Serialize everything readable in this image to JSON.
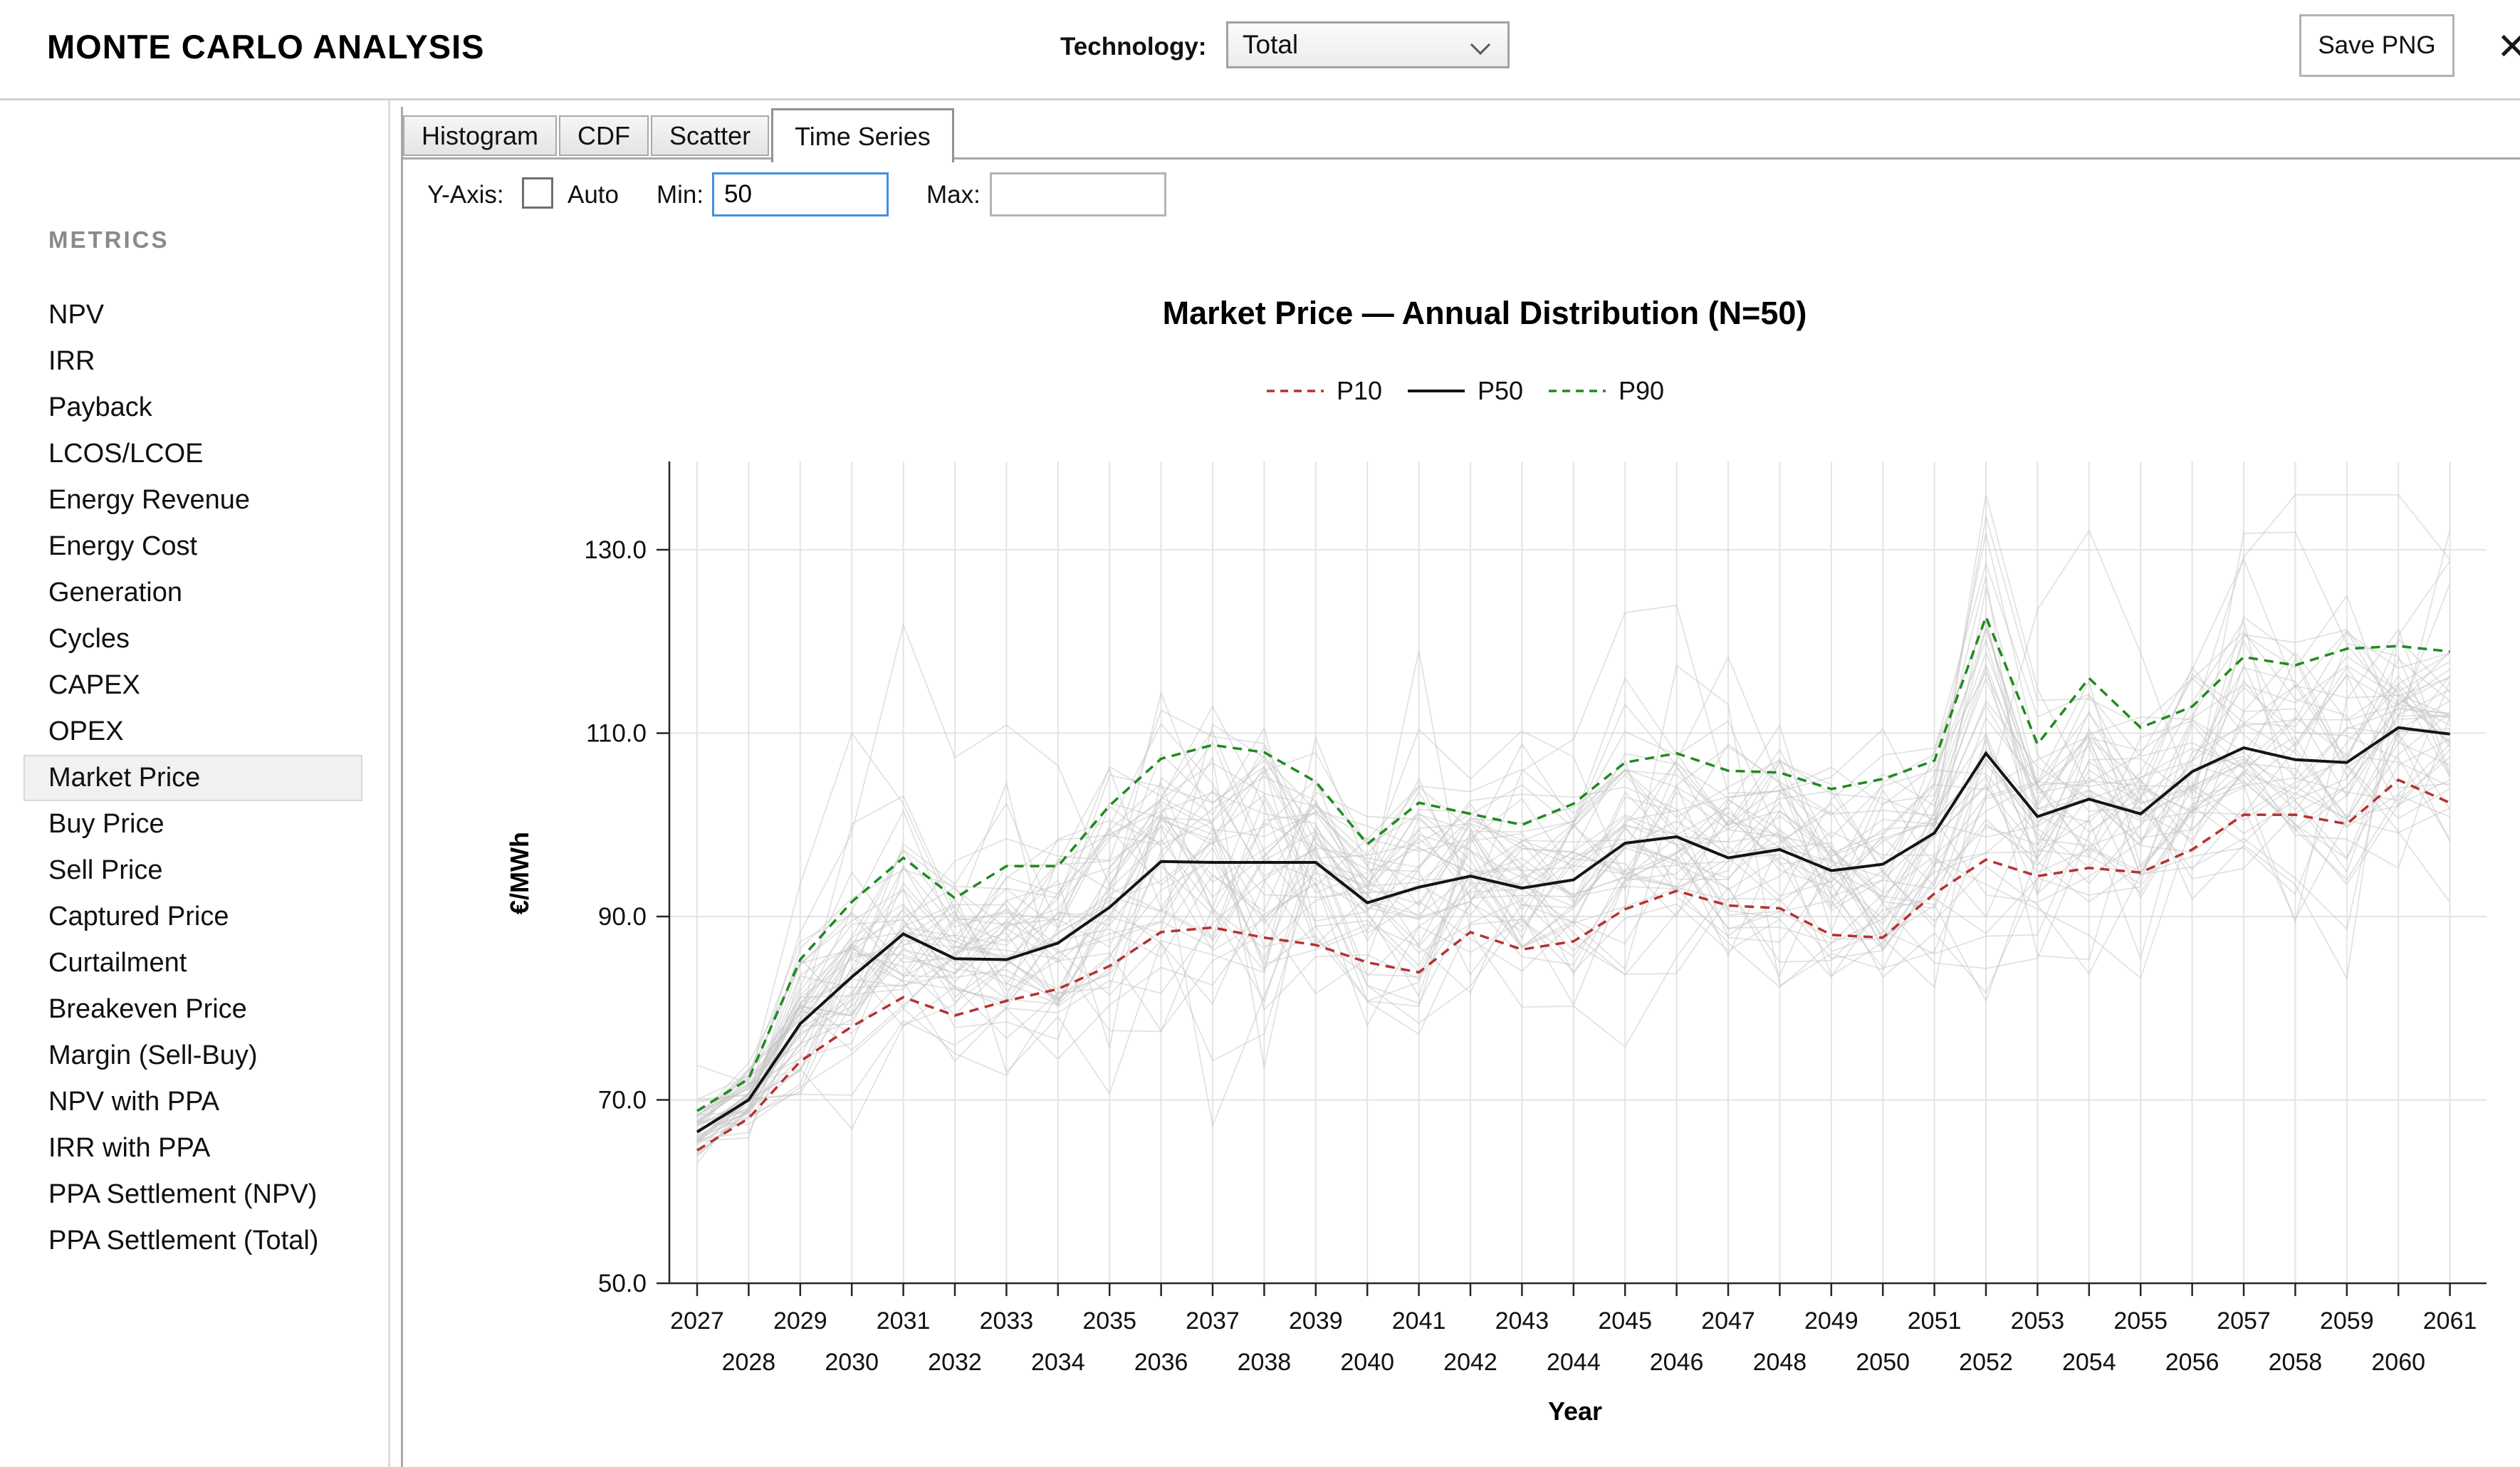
{
  "header": {
    "title": "MONTE CARLO ANALYSIS",
    "technology_label": "Technology:",
    "technology_value": "Total",
    "save_button": "Save PNG",
    "close_glyph": "✕"
  },
  "sidebar": {
    "header": "METRICS",
    "selected": "Market Price",
    "items": [
      "NPV",
      "IRR",
      "Payback",
      "LCOS/LCOE",
      "Energy Revenue",
      "Energy Cost",
      "Generation",
      "Cycles",
      "CAPEX",
      "OPEX",
      "Market Price",
      "Buy Price",
      "Sell Price",
      "Captured Price",
      "Curtailment",
      "Breakeven Price",
      "Margin (Sell-Buy)",
      "NPV with PPA",
      "IRR with PPA",
      "PPA Settlement (NPV)",
      "PPA Settlement (Total)"
    ]
  },
  "tabs": {
    "items": [
      "Histogram",
      "CDF",
      "Scatter",
      "Time Series"
    ],
    "active": "Time Series"
  },
  "controls": {
    "group_label": "Y-Axis:",
    "auto_label": "Auto",
    "auto_checked": false,
    "min_label": "Min:",
    "min_value": "50",
    "max_label": "Max:",
    "max_value": ""
  },
  "chart_data": {
    "type": "line",
    "title": "Market Price — Annual Distribution (N=50)",
    "xlabel": "Year",
    "ylabel": "€/MWh",
    "x": [
      2027,
      2028,
      2029,
      2030,
      2031,
      2032,
      2033,
      2034,
      2035,
      2036,
      2037,
      2038,
      2039,
      2040,
      2041,
      2042,
      2043,
      2044,
      2045,
      2046,
      2047,
      2048,
      2049,
      2050,
      2051,
      2052,
      2053,
      2054,
      2055,
      2056,
      2057,
      2058,
      2059,
      2060,
      2061
    ],
    "yticks": [
      50,
      70,
      90,
      110,
      130
    ],
    "ylim": [
      50,
      139
    ],
    "grid": true,
    "legend_position": "top-center",
    "n_simulations": 50,
    "series": [
      {
        "name": "P10",
        "style": "dashed",
        "color": "#b53131",
        "values": [
          64.5,
          68.0,
          74.2,
          78.0,
          81.2,
          79.2,
          80.8,
          82.1,
          84.6,
          88.3,
          88.8,
          87.7,
          86.9,
          85.0,
          83.9,
          88.3,
          86.4,
          87.3,
          90.8,
          92.8,
          91.2,
          90.9,
          88.0,
          87.7,
          92.5,
          96.2,
          94.4,
          95.3,
          94.8,
          97.3,
          101.1,
          101.1,
          100.1,
          104.9,
          102.4
        ]
      },
      {
        "name": "P50",
        "style": "solid",
        "color": "#141414",
        "values": [
          66.5,
          70.0,
          78.3,
          83.4,
          88.1,
          85.4,
          85.3,
          87.1,
          91.0,
          96.0,
          95.9,
          95.9,
          95.9,
          91.5,
          93.2,
          94.4,
          93.1,
          94.0,
          98.0,
          98.7,
          96.4,
          97.3,
          95.0,
          95.7,
          99.1,
          107.8,
          100.9,
          102.8,
          101.2,
          105.8,
          108.4,
          107.1,
          106.8,
          110.6,
          109.9
        ]
      },
      {
        "name": "P90",
        "style": "dashed",
        "color": "#1f8a1f",
        "values": [
          68.8,
          72.3,
          85.3,
          91.6,
          96.4,
          92.0,
          95.5,
          95.5,
          102.1,
          107.2,
          108.7,
          107.9,
          104.7,
          97.9,
          102.4,
          101.2,
          100.0,
          102.3,
          106.8,
          107.8,
          105.9,
          105.7,
          103.9,
          105.0,
          107.0,
          122.7,
          108.8,
          116.0,
          110.6,
          112.9,
          118.3,
          117.4,
          119.2,
          119.5,
          118.9
        ]
      }
    ],
    "sim_style": {
      "color": "#c4c4c4",
      "opacity": 0.5
    }
  }
}
